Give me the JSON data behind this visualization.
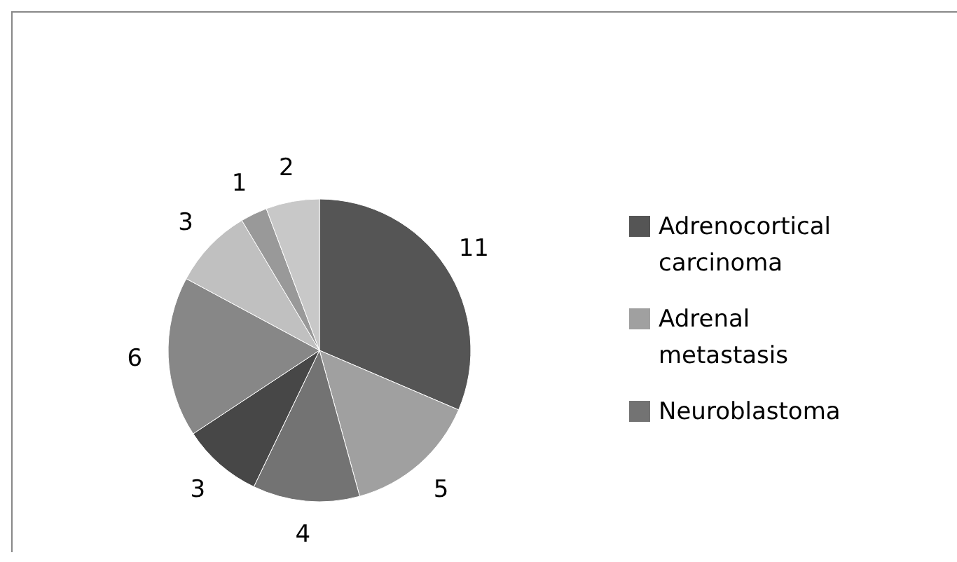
{
  "chart_data": {
    "type": "pie",
    "categories": [
      "Adrenocortical carcinoma",
      "Adrenal metastasis",
      "Neuroblastoma",
      null,
      null,
      null,
      null,
      null
    ],
    "values": [
      11,
      5,
      4,
      3,
      6,
      3,
      1,
      2
    ],
    "colors": [
      "#555555",
      "#a0a0a0",
      "#737373",
      "#474747",
      "#878787",
      "#c0c0c0",
      "#999999",
      "#c8c8c8"
    ],
    "data_labels": true,
    "legend": "right"
  }
}
